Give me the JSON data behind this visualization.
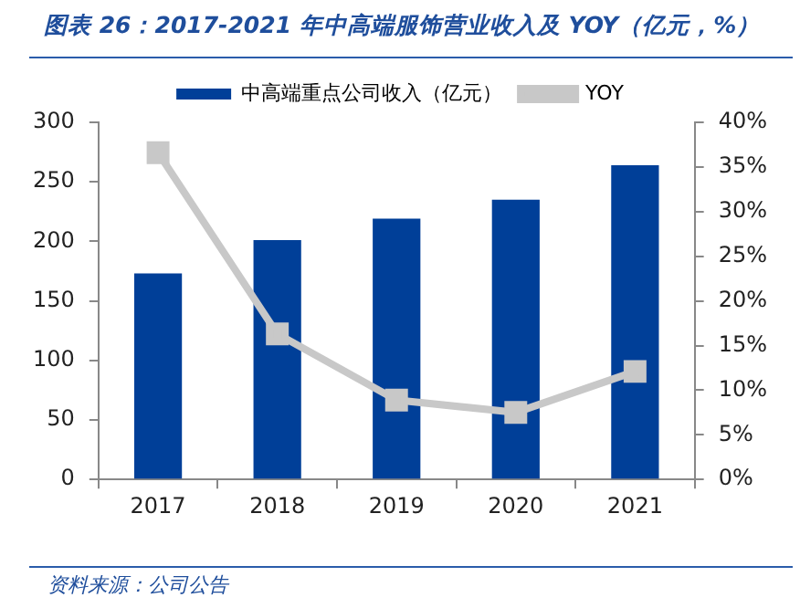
{
  "chart_data": {
    "type": "bar",
    "title": "图表 26：2017-2021 年中高端服饰营业收入及 YOY（亿元，%）",
    "annotations": [
      "资料来源：公司公告"
    ],
    "categories": [
      "2017",
      "2018",
      "2019",
      "2020",
      "2021"
    ],
    "series": [
      {
        "name": "中高端重点公司收入（亿元）",
        "color": "#003f98",
        "values": [
          173,
          201,
          219,
          235,
          264
        ]
      },
      {
        "name": "YOY",
        "type": "line",
        "axis": "y2",
        "color": "#c8c8c8",
        "marker": "square",
        "values": [
          36.6,
          16.3,
          8.9,
          7.5,
          12.1
        ]
      }
    ],
    "ylim": [
      0,
      300
    ],
    "yticks": [
      0,
      50,
      100,
      150,
      200,
      250,
      300
    ],
    "y2lim": [
      0,
      40
    ],
    "y2ticks": [
      {
        "value": 0,
        "label": "0%"
      },
      {
        "value": 5,
        "label": "5%"
      },
      {
        "value": 10,
        "label": "10%"
      },
      {
        "value": 15,
        "label": "15%"
      },
      {
        "value": 20,
        "label": "20%"
      },
      {
        "value": 25,
        "label": "25%"
      },
      {
        "value": 30,
        "label": "30%"
      },
      {
        "value": 35,
        "label": "35%"
      },
      {
        "value": 40,
        "label": "40%"
      }
    ],
    "grid": false,
    "legend": "top"
  }
}
